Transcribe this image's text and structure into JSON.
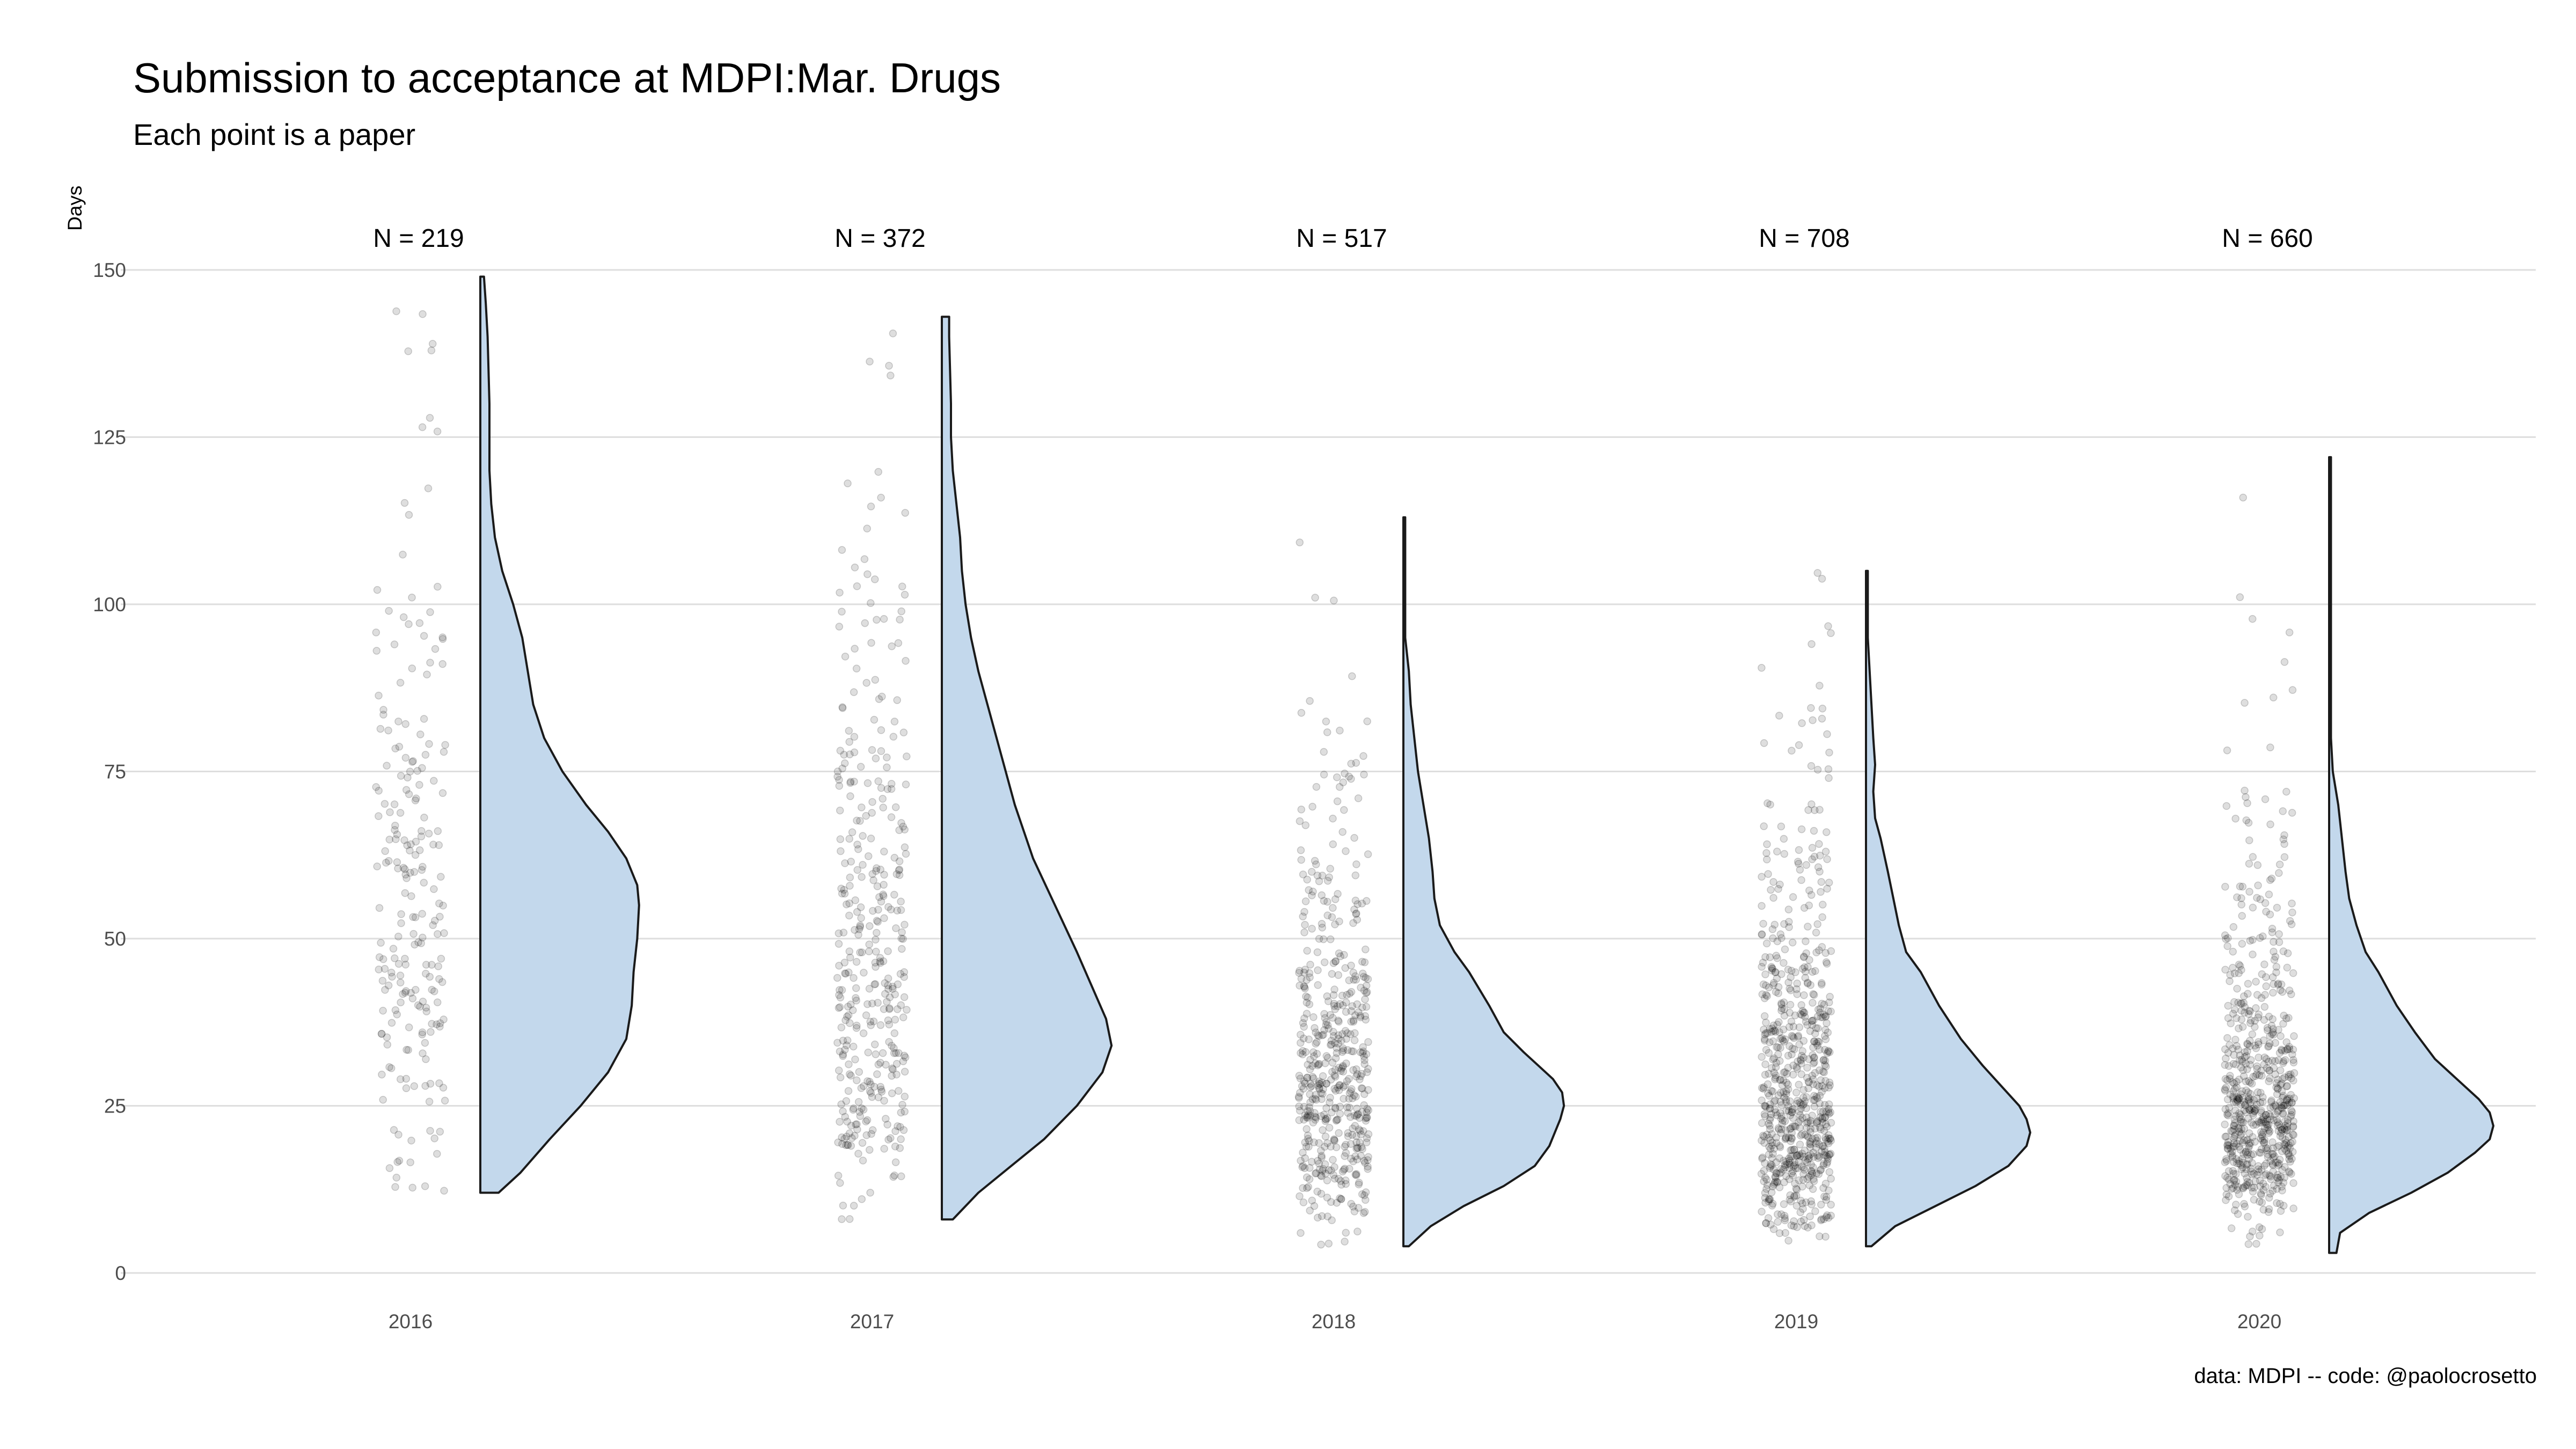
{
  "chart_data": {
    "type": "raincloud",
    "title": "Submission to acceptance at MDPI:Mar. Drugs",
    "subtitle": "Each point is a paper",
    "caption": "data: MDPI -- code: @paolocrosetto",
    "ylabel": "Days",
    "ylim": [
      0,
      150
    ],
    "yticks": [
      0,
      25,
      50,
      75,
      100,
      125,
      150
    ],
    "categories": [
      "2016",
      "2017",
      "2018",
      "2019",
      "2020"
    ],
    "n_labels": [
      "N = 219",
      "N = 372",
      "N = 517",
      "N = 708",
      "N = 660"
    ],
    "groups": [
      {
        "year": "2016",
        "n": 219,
        "min": 12,
        "max": 149,
        "density": [
          [
            12,
            0.1
          ],
          [
            15,
            0.22
          ],
          [
            20,
            0.38
          ],
          [
            25,
            0.55
          ],
          [
            30,
            0.7
          ],
          [
            35,
            0.8
          ],
          [
            40,
            0.83
          ],
          [
            45,
            0.84
          ],
          [
            50,
            0.86
          ],
          [
            55,
            0.87
          ],
          [
            58,
            0.86
          ],
          [
            62,
            0.8
          ],
          [
            66,
            0.7
          ],
          [
            70,
            0.58
          ],
          [
            75,
            0.45
          ],
          [
            80,
            0.35
          ],
          [
            85,
            0.29
          ],
          [
            90,
            0.26
          ],
          [
            95,
            0.23
          ],
          [
            100,
            0.18
          ],
          [
            105,
            0.12
          ],
          [
            110,
            0.08
          ],
          [
            115,
            0.06
          ],
          [
            120,
            0.05
          ],
          [
            130,
            0.05
          ],
          [
            140,
            0.04
          ],
          [
            145,
            0.03
          ],
          [
            149,
            0.02
          ]
        ]
      },
      {
        "year": "2017",
        "n": 372,
        "min": 8,
        "max": 143,
        "density": [
          [
            8,
            0.06
          ],
          [
            12,
            0.2
          ],
          [
            16,
            0.38
          ],
          [
            20,
            0.56
          ],
          [
            25,
            0.74
          ],
          [
            30,
            0.88
          ],
          [
            34,
            0.93
          ],
          [
            38,
            0.9
          ],
          [
            43,
            0.82
          ],
          [
            48,
            0.74
          ],
          [
            55,
            0.62
          ],
          [
            62,
            0.5
          ],
          [
            70,
            0.4
          ],
          [
            78,
            0.32
          ],
          [
            85,
            0.25
          ],
          [
            90,
            0.2
          ],
          [
            95,
            0.16
          ],
          [
            100,
            0.13
          ],
          [
            105,
            0.11
          ],
          [
            110,
            0.1
          ],
          [
            115,
            0.08
          ],
          [
            120,
            0.06
          ],
          [
            125,
            0.05
          ],
          [
            130,
            0.05
          ],
          [
            140,
            0.04
          ],
          [
            143,
            0.04
          ]
        ]
      },
      {
        "year": "2018",
        "n": 517,
        "min": 4,
        "max": 113,
        "density": [
          [
            4,
            0.03
          ],
          [
            7,
            0.15
          ],
          [
            10,
            0.33
          ],
          [
            13,
            0.55
          ],
          [
            16,
            0.72
          ],
          [
            19,
            0.8
          ],
          [
            21,
            0.83
          ],
          [
            23,
            0.86
          ],
          [
            25,
            0.88
          ],
          [
            27,
            0.87
          ],
          [
            29,
            0.82
          ],
          [
            31,
            0.74
          ],
          [
            33,
            0.66
          ],
          [
            36,
            0.55
          ],
          [
            40,
            0.47
          ],
          [
            45,
            0.36
          ],
          [
            48,
            0.28
          ],
          [
            52,
            0.2
          ],
          [
            56,
            0.17
          ],
          [
            60,
            0.16
          ],
          [
            65,
            0.14
          ],
          [
            70,
            0.11
          ],
          [
            75,
            0.08
          ],
          [
            80,
            0.06
          ],
          [
            85,
            0.04
          ],
          [
            90,
            0.03
          ],
          [
            95,
            0.01
          ],
          [
            100,
            0.01
          ],
          [
            105,
            0.01
          ],
          [
            113,
            0.01
          ]
        ]
      },
      {
        "year": "2019",
        "n": 708,
        "min": 4,
        "max": 105,
        "density": [
          [
            4,
            0.03
          ],
          [
            7,
            0.16
          ],
          [
            10,
            0.38
          ],
          [
            13,
            0.6
          ],
          [
            16,
            0.78
          ],
          [
            19,
            0.88
          ],
          [
            21,
            0.9
          ],
          [
            23,
            0.88
          ],
          [
            25,
            0.84
          ],
          [
            28,
            0.74
          ],
          [
            31,
            0.64
          ],
          [
            35,
            0.52
          ],
          [
            40,
            0.4
          ],
          [
            45,
            0.3
          ],
          [
            48,
            0.22
          ],
          [
            52,
            0.18
          ],
          [
            56,
            0.15
          ],
          [
            60,
            0.12
          ],
          [
            65,
            0.08
          ],
          [
            68,
            0.05
          ],
          [
            72,
            0.04
          ],
          [
            76,
            0.05
          ],
          [
            80,
            0.04
          ],
          [
            85,
            0.03
          ],
          [
            90,
            0.02
          ],
          [
            95,
            0.01
          ],
          [
            100,
            0.01
          ],
          [
            105,
            0.01
          ]
        ]
      },
      {
        "year": "2020",
        "n": 660,
        "min": 3,
        "max": 122,
        "density": [
          [
            3,
            0.04
          ],
          [
            6,
            0.06
          ],
          [
            9,
            0.22
          ],
          [
            12,
            0.45
          ],
          [
            15,
            0.65
          ],
          [
            18,
            0.8
          ],
          [
            20,
            0.88
          ],
          [
            22,
            0.9
          ],
          [
            24,
            0.88
          ],
          [
            26,
            0.82
          ],
          [
            29,
            0.7
          ],
          [
            32,
            0.58
          ],
          [
            36,
            0.47
          ],
          [
            40,
            0.37
          ],
          [
            45,
            0.27
          ],
          [
            48,
            0.2
          ],
          [
            52,
            0.15
          ],
          [
            56,
            0.11
          ],
          [
            60,
            0.09
          ],
          [
            65,
            0.07
          ],
          [
            70,
            0.05
          ],
          [
            75,
            0.02
          ],
          [
            80,
            0.01
          ],
          [
            90,
            0.01
          ],
          [
            100,
            0.01
          ],
          [
            110,
            0.01
          ],
          [
            122,
            0.01
          ]
        ]
      }
    ],
    "points_color": "#000000",
    "cloud_fill": "#c3d8ec",
    "cloud_stroke": "#1a1a1a",
    "grid": true,
    "legend": "none"
  }
}
